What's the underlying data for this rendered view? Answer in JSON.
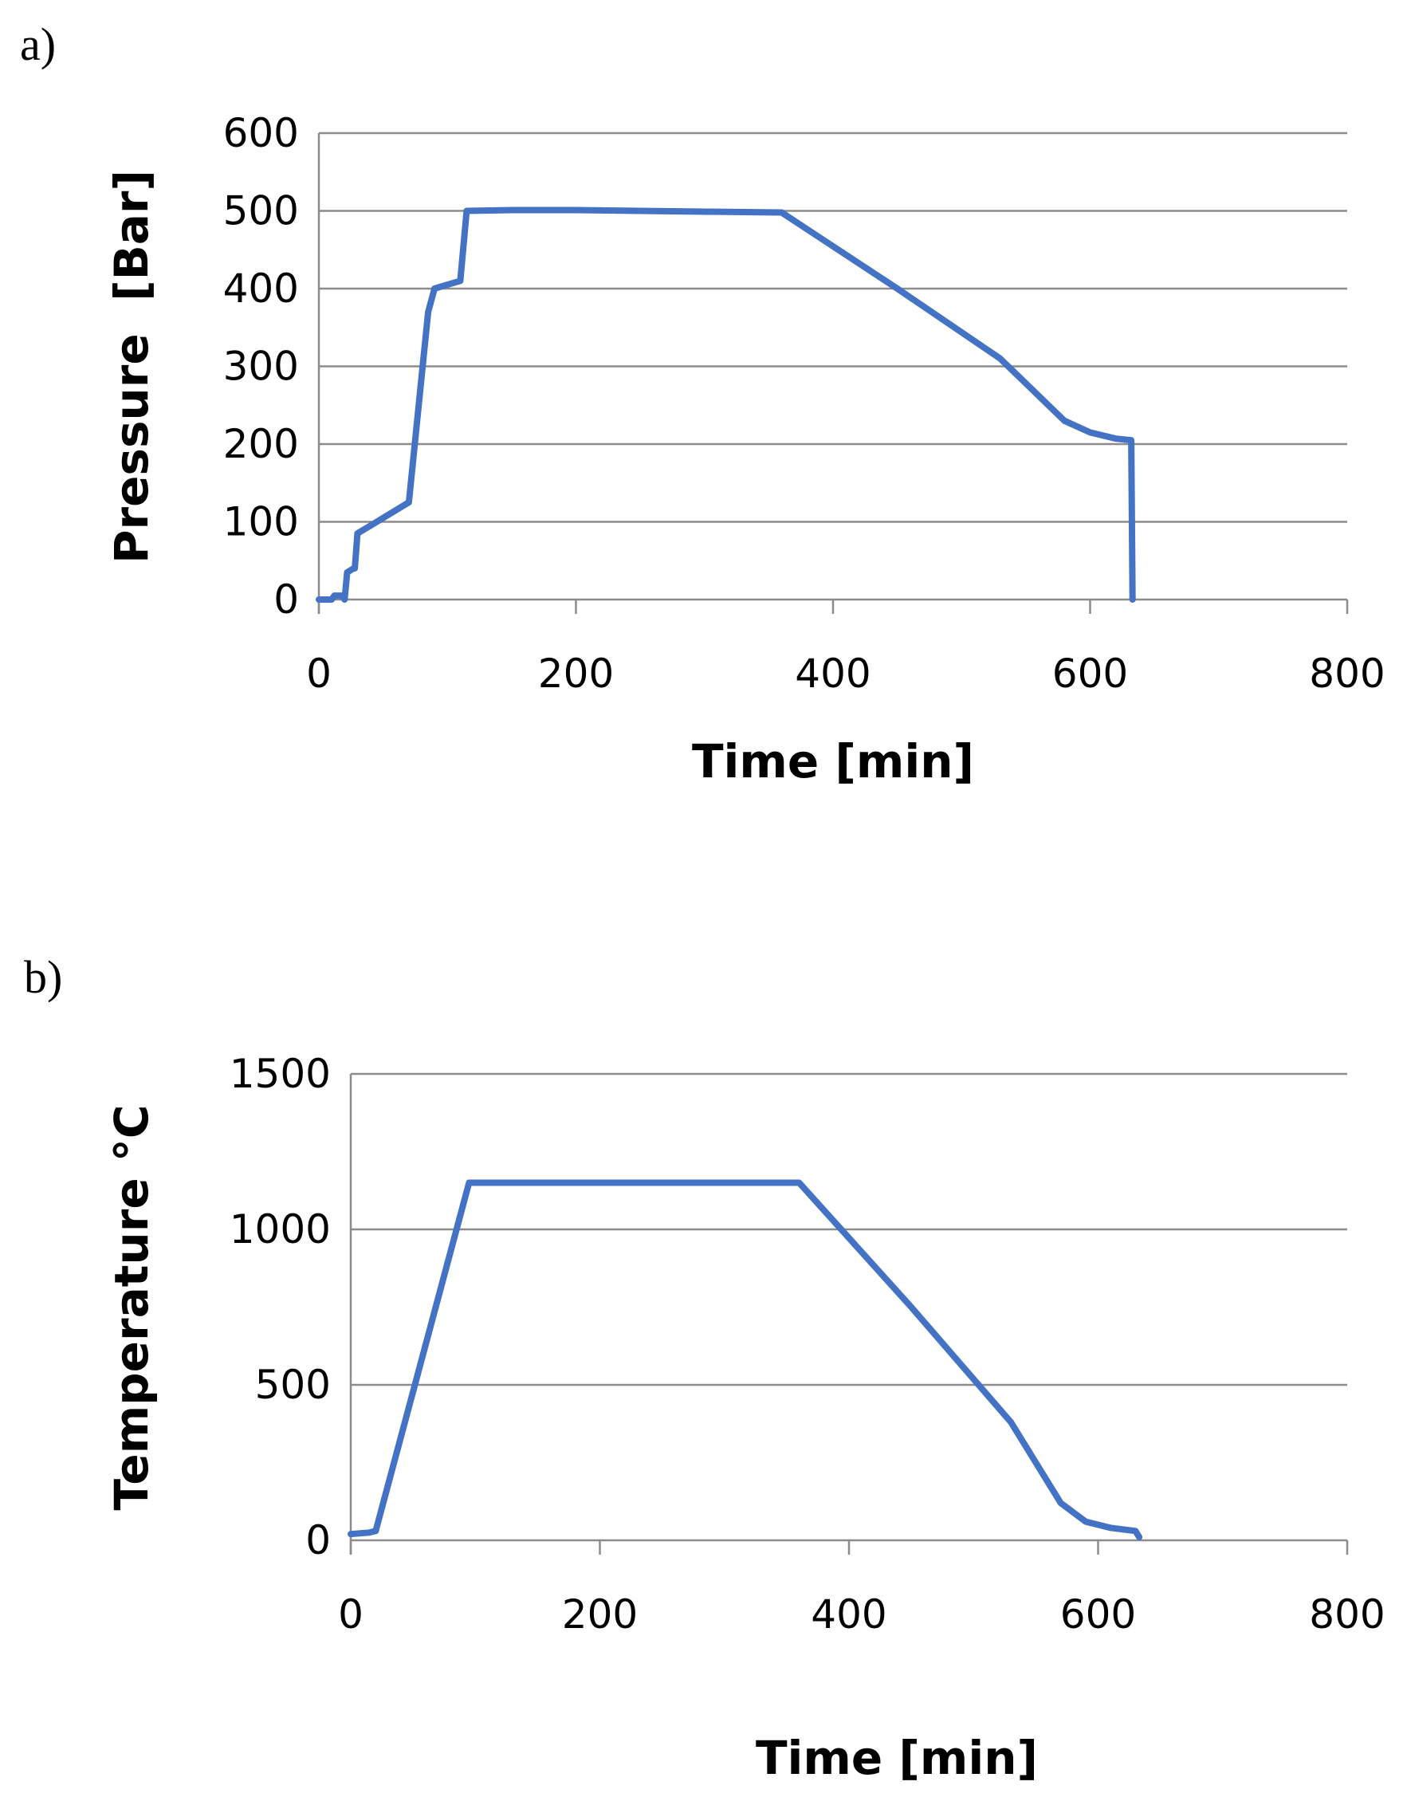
{
  "panels": {
    "a_label": "a)",
    "b_label": "b)"
  },
  "colors": {
    "series": "#4472C4",
    "grid": "#8c8c8c"
  },
  "chart_data": [
    {
      "type": "line",
      "panel": "a)",
      "title": "",
      "xlabel": "Time [min]",
      "ylabel": "Pressure  [Bar]",
      "xlim": [
        0,
        800
      ],
      "ylim": [
        0,
        600
      ],
      "xticks": [
        0,
        200,
        400,
        600,
        800
      ],
      "yticks": [
        0,
        100,
        200,
        300,
        400,
        500,
        600
      ],
      "grid": true,
      "series": [
        {
          "name": "Pressure",
          "x": [
            0,
            10,
            12,
            18,
            20,
            22,
            27,
            28,
            30,
            40,
            70,
            85,
            90,
            100,
            110,
            115,
            150,
            200,
            300,
            360,
            450,
            530,
            580,
            600,
            620,
            632,
            633
          ],
          "y": [
            0,
            0,
            5,
            5,
            0,
            35,
            40,
            40,
            85,
            95,
            125,
            370,
            400,
            405,
            410,
            500,
            501,
            501,
            499,
            498,
            400,
            310,
            230,
            215,
            207,
            205,
            0
          ]
        }
      ]
    },
    {
      "type": "line",
      "panel": "b)",
      "title": "",
      "xlabel": "Time [min]",
      "ylabel": "Temperature °C",
      "xlim": [
        0,
        800
      ],
      "ylim": [
        0,
        1500
      ],
      "xticks": [
        0,
        200,
        400,
        600,
        800
      ],
      "yticks": [
        0,
        500,
        1000,
        1500
      ],
      "grid": true,
      "series": [
        {
          "name": "Temperature",
          "x": [
            0,
            15,
            20,
            95,
            100,
            200,
            300,
            360,
            450,
            530,
            570,
            590,
            610,
            630,
            633
          ],
          "y": [
            20,
            25,
            30,
            1150,
            1150,
            1150,
            1150,
            1150,
            750,
            380,
            120,
            60,
            40,
            30,
            10
          ]
        }
      ]
    }
  ]
}
